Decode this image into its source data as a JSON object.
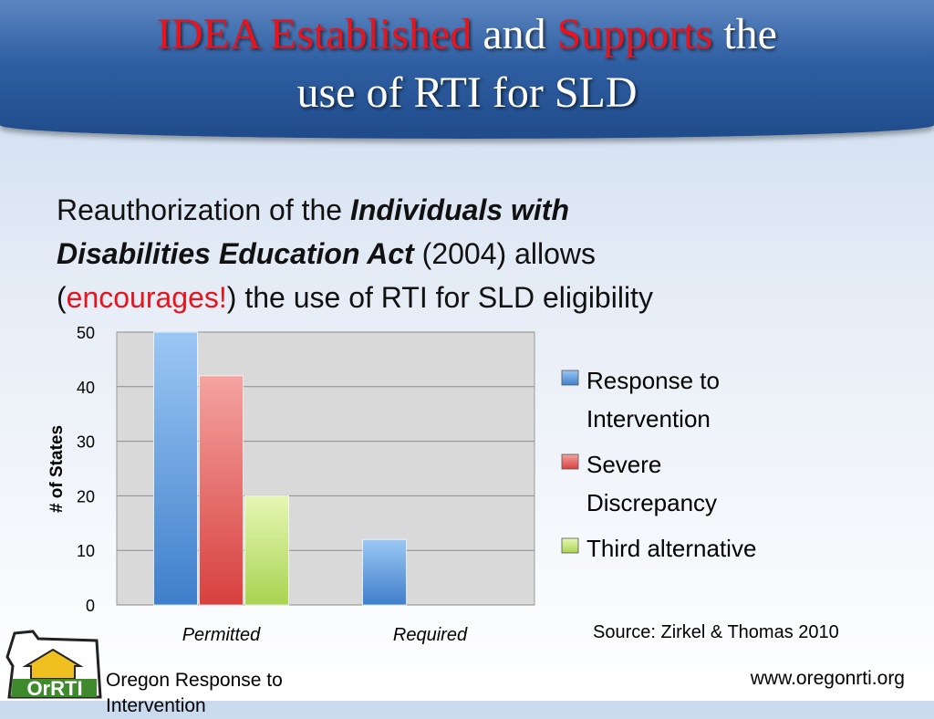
{
  "header": {
    "title_part1": "IDEA Established",
    "title_part2": " and ",
    "title_part3": "Supports",
    "title_part4": " the",
    "title_line2": "use of RTI for SLD"
  },
  "body": {
    "text1": "Reauthorization of the ",
    "act_line1": "Individuals with",
    "act_line2": "Disabilities Education Act",
    "text2": " (2004) allows",
    "paren_open": "(",
    "encourages": "encourages!",
    "text3": ") the use of RTI for SLD eligibility"
  },
  "chart_data": {
    "type": "bar",
    "categories": [
      "Permitted",
      "Required"
    ],
    "series": [
      {
        "name": "Response to Intervention",
        "values": [
          50,
          12
        ]
      },
      {
        "name": "Severe Discrepancy",
        "values": [
          42,
          null
        ]
      },
      {
        "name": "Third alternative",
        "values": [
          20,
          null
        ]
      }
    ],
    "ylabel": "# of States",
    "ylim": [
      0,
      50
    ],
    "yticks": [
      0,
      10,
      20,
      30,
      40,
      50
    ],
    "grid": true,
    "legend": "right",
    "colors": [
      "#5b9ad5",
      "#e8615f",
      "#c6e57a"
    ]
  },
  "source": "Source: Zirkel & Thomas 2010",
  "footer": {
    "logo_text": "OrRTI",
    "left_line1": "Oregon Response to",
    "left_line2": "Intervention",
    "right": "www.oregonrti.org"
  }
}
